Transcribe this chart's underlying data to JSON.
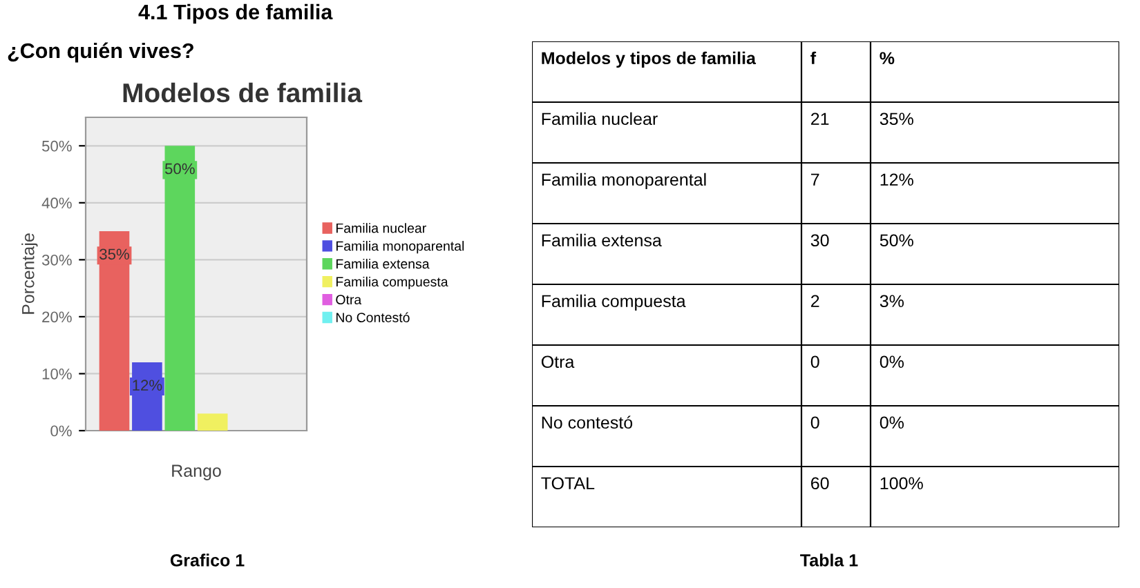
{
  "chart_data": [
    {
      "type": "bar",
      "title": "Modelos de familia",
      "ylabel": "Porcentaje",
      "xlabel": "Rango",
      "annotations": [
        "4.1 Tipos de familia",
        "¿Con quién vives?",
        "Grafico 1"
      ],
      "categories": [
        null
      ],
      "series": [
        {
          "name": "Familia nuclear",
          "color": "#e8625f",
          "values": [
            35
          ],
          "value_labels": [
            "35%"
          ]
        },
        {
          "name": "Familia monoparental",
          "color": "#4f4fe0",
          "values": [
            12
          ],
          "value_labels": [
            "12%"
          ]
        },
        {
          "name": "Familia extensa",
          "color": "#5dd65d",
          "values": [
            50
          ],
          "value_labels": [
            "50%"
          ]
        },
        {
          "name": "Familia compuesta",
          "color": "#f0f060",
          "values": [
            3
          ],
          "value_labels": [
            null
          ]
        },
        {
          "name": "Otra",
          "color": "#e05ee0",
          "values": [
            0
          ],
          "value_labels": [
            null
          ]
        },
        {
          "name": "No Contestó",
          "color": "#70f0f0",
          "values": [
            0
          ],
          "value_labels": [
            null
          ]
        }
      ],
      "ylim": [
        0,
        55
      ],
      "yticks": [
        {
          "value": 0,
          "label": "0%"
        },
        {
          "value": 10,
          "label": "10%"
        },
        {
          "value": 20,
          "label": "20%"
        },
        {
          "value": 30,
          "label": "30%"
        },
        {
          "value": 40,
          "label": "40%"
        },
        {
          "value": 50,
          "label": "50%"
        }
      ],
      "grid": "y",
      "legend": "right"
    },
    {
      "type": "other",
      "annotations": [
        "Tabla 1"
      ],
      "categories": [
        "Modelos y tipos de familia",
        "f",
        "%"
      ],
      "y_categories": [
        "Familia nuclear",
        "Familia monoparental",
        "Familia extensa",
        "Familia compuesta",
        "Otra",
        "No contestó",
        "TOTAL"
      ],
      "cell_labels": [
        [
          "21",
          "35%"
        ],
        [
          "7",
          "12%"
        ],
        [
          "30",
          "50%"
        ],
        [
          "2",
          "3%"
        ],
        [
          "0",
          "0%"
        ],
        [
          "0",
          "0%"
        ],
        [
          "60",
          "100%"
        ]
      ]
    }
  ]
}
